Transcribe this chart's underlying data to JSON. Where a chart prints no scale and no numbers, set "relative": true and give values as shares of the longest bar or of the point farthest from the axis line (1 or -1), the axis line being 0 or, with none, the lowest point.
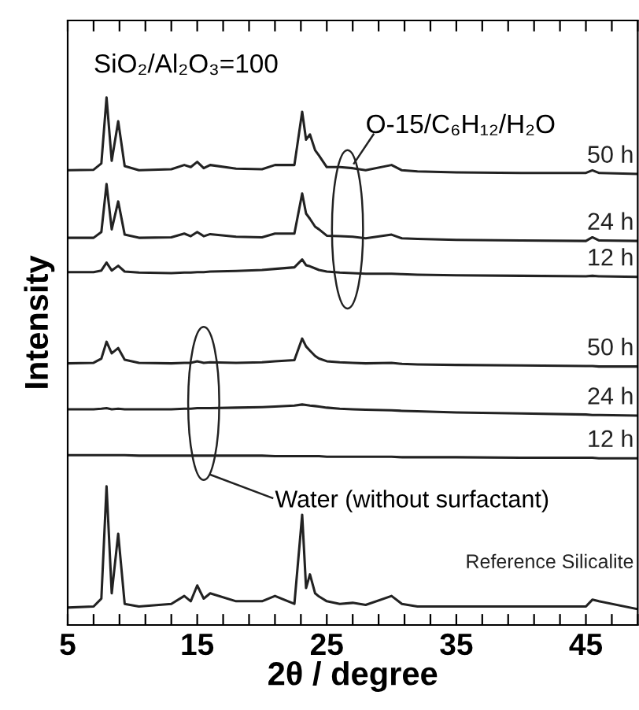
{
  "chart_data": {
    "type": "line",
    "relative": true,
    "xlabel": "2θ / degree",
    "ylabel": "Intensity",
    "xlim": [
      5,
      49
    ],
    "xticks": [
      5,
      {
        "value": 7,
        "label": null
      },
      {
        "value": 9,
        "label": null
      },
      {
        "value": 11,
        "label": null
      },
      {
        "value": 13,
        "label": null
      },
      15,
      {
        "value": 17,
        "label": null
      },
      {
        "value": 19,
        "label": null
      },
      {
        "value": 21,
        "label": null
      },
      {
        "value": 23,
        "label": null
      },
      25,
      {
        "value": 27,
        "label": null
      },
      {
        "value": 29,
        "label": null
      },
      {
        "value": 31,
        "label": null
      },
      {
        "value": 33,
        "label": null
      },
      35,
      {
        "value": 37,
        "label": null
      },
      {
        "value": 39,
        "label": null
      },
      {
        "value": 41,
        "label": null
      },
      {
        "value": 43,
        "label": null
      },
      45,
      {
        "value": 47,
        "label": null
      },
      {
        "value": 49,
        "label": null
      }
    ],
    "x": [
      5,
      7,
      7.6,
      8.0,
      8.4,
      8.9,
      9.4,
      10.5,
      13,
      14,
      14.5,
      15,
      15.5,
      16,
      18,
      20,
      21,
      22.5,
      23.1,
      23.4,
      23.7,
      24.1,
      24.4,
      25,
      26,
      27,
      28,
      30,
      30.8,
      32,
      35,
      40,
      45,
      45.5,
      46,
      49
    ],
    "annotations": [
      "SiO₂/Al₂O₃=100",
      "O-15/C₆H₁₂/H₂O",
      "Water (without surfactant)"
    ],
    "marker": "none",
    "line_style": "solid",
    "grid": false,
    "legend": false,
    "series": [
      {
        "name": "50 h",
        "color": "#222222",
        "values": [
          0.862,
          0.863,
          0.875,
          1.0,
          0.88,
          0.955,
          0.87,
          0.862,
          0.864,
          0.872,
          0.868,
          0.878,
          0.866,
          0.872,
          0.865,
          0.864,
          0.872,
          0.872,
          0.973,
          0.92,
          0.93,
          0.9,
          0.89,
          0.868,
          0.868,
          0.866,
          0.862,
          0.872,
          0.862,
          0.86,
          0.858,
          0.857,
          0.857,
          0.862,
          0.857,
          0.855
        ]
      },
      {
        "name": "24 h",
        "color": "#222222",
        "values": [
          0.734,
          0.734,
          0.745,
          0.836,
          0.75,
          0.803,
          0.74,
          0.734,
          0.735,
          0.742,
          0.737,
          0.745,
          0.737,
          0.741,
          0.736,
          0.735,
          0.742,
          0.742,
          0.818,
          0.78,
          0.77,
          0.755,
          0.75,
          0.738,
          0.737,
          0.736,
          0.733,
          0.74,
          0.733,
          0.732,
          0.73,
          0.729,
          0.728,
          0.735,
          0.729,
          0.728
        ]
      },
      {
        "name": "12 h",
        "color": "#222222",
        "values": [
          0.669,
          0.669,
          0.672,
          0.687,
          0.672,
          0.681,
          0.67,
          0.668,
          0.667,
          0.668,
          0.668,
          0.669,
          0.669,
          0.67,
          0.671,
          0.673,
          0.675,
          0.678,
          0.693,
          0.682,
          0.68,
          0.676,
          0.673,
          0.67,
          0.668,
          0.667,
          0.666,
          0.666,
          0.665,
          0.664,
          0.663,
          0.662,
          0.661,
          0.662,
          0.661,
          0.66
        ]
      },
      {
        "name": "50 h",
        "color": "#222222",
        "values": [
          0.496,
          0.497,
          0.505,
          0.537,
          0.515,
          0.525,
          0.503,
          0.497,
          0.496,
          0.497,
          0.497,
          0.5,
          0.497,
          0.498,
          0.497,
          0.498,
          0.5,
          0.502,
          0.543,
          0.528,
          0.52,
          0.51,
          0.505,
          0.5,
          0.498,
          0.497,
          0.496,
          0.497,
          0.495,
          0.494,
          0.493,
          0.492,
          0.491,
          0.491,
          0.49,
          0.49
        ]
      },
      {
        "name": "24 h",
        "color": "#222222",
        "values": [
          0.409,
          0.409,
          0.41,
          0.411,
          0.409,
          0.41,
          0.409,
          0.409,
          0.409,
          0.41,
          0.41,
          0.411,
          0.411,
          0.411,
          0.412,
          0.413,
          0.414,
          0.416,
          0.418,
          0.417,
          0.416,
          0.415,
          0.414,
          0.412,
          0.41,
          0.409,
          0.408,
          0.407,
          0.406,
          0.405,
          0.403,
          0.401,
          0.399,
          0.398,
          0.398,
          0.397
        ]
      },
      {
        "name": "12 h",
        "color": "#222222",
        "values": [
          0.322,
          0.322,
          0.322,
          0.322,
          0.322,
          0.322,
          0.322,
          0.321,
          0.321,
          0.321,
          0.321,
          0.321,
          0.321,
          0.321,
          0.321,
          0.321,
          0.32,
          0.32,
          0.32,
          0.32,
          0.32,
          0.32,
          0.32,
          0.319,
          0.319,
          0.319,
          0.319,
          0.319,
          0.318,
          0.318,
          0.318,
          0.317,
          0.317,
          0.317,
          0.316,
          0.316
        ]
      },
      {
        "name": "Reference Silicalite",
        "color": "#222222",
        "values": [
          0.033,
          0.035,
          0.05,
          0.263,
          0.06,
          0.173,
          0.04,
          0.035,
          0.04,
          0.055,
          0.045,
          0.075,
          0.05,
          0.06,
          0.045,
          0.045,
          0.055,
          0.04,
          0.209,
          0.07,
          0.096,
          0.06,
          0.054,
          0.045,
          0.04,
          0.042,
          0.038,
          0.055,
          0.04,
          0.035,
          0.035,
          0.035,
          0.035,
          0.048,
          0.045,
          0.03
        ]
      }
    ]
  }
}
